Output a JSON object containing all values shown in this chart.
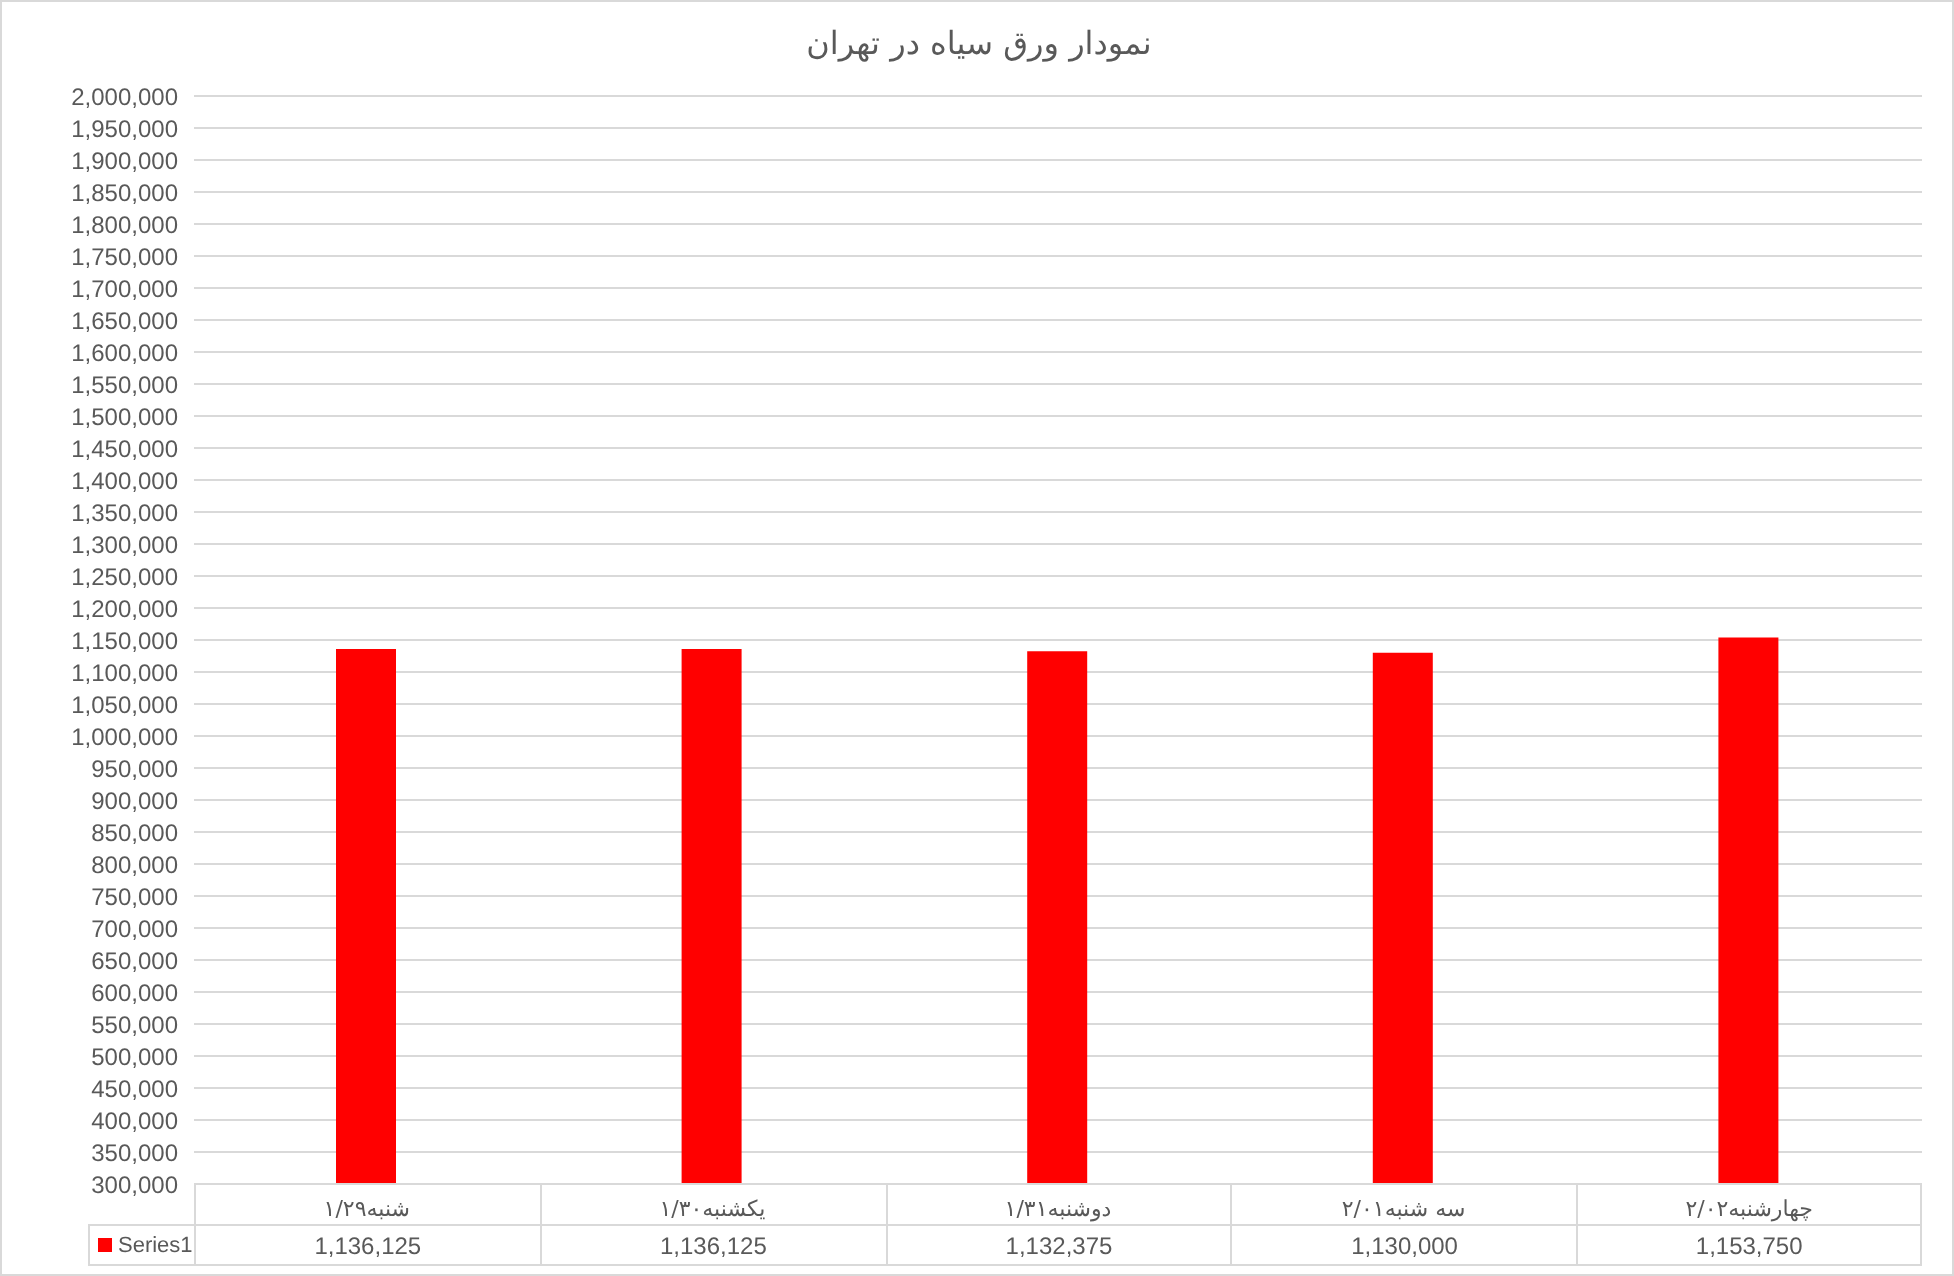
{
  "chart_data": {
    "type": "bar",
    "title": "نمودار ورق سیاه در تهران",
    "categories": [
      "شنبه۱/۲۹",
      "یکشنبه۱/۳۰",
      "دوشنبه۱/۳۱",
      "سه شنبه۲/۰۱",
      "چهارشنبه۲/۰۲"
    ],
    "series": [
      {
        "name": "Series1",
        "color": "#ff0000",
        "values": [
          1136125,
          1136125,
          1132375,
          1130000,
          1153750
        ],
        "value_labels": [
          "1,136,125",
          "1,136,125",
          "1,132,375",
          "1,130,000",
          "1,153,750"
        ]
      }
    ],
    "ylim": [
      300000,
      2000000
    ],
    "yticks": [
      {
        "value": 300000,
        "label": "300,000"
      },
      {
        "value": 350000,
        "label": "350,000"
      },
      {
        "value": 400000,
        "label": "400,000"
      },
      {
        "value": 450000,
        "label": "450,000"
      },
      {
        "value": 500000,
        "label": "500,000"
      },
      {
        "value": 550000,
        "label": "550,000"
      },
      {
        "value": 600000,
        "label": "600,000"
      },
      {
        "value": 650000,
        "label": "650,000"
      },
      {
        "value": 700000,
        "label": "700,000"
      },
      {
        "value": 750000,
        "label": "750,000"
      },
      {
        "value": 800000,
        "label": "800,000"
      },
      {
        "value": 850000,
        "label": "850,000"
      },
      {
        "value": 900000,
        "label": "900,000"
      },
      {
        "value": 950000,
        "label": "950,000"
      },
      {
        "value": 1000000,
        "label": "1,000,000"
      },
      {
        "value": 1050000,
        "label": "1,050,000"
      },
      {
        "value": 1100000,
        "label": "1,100,000"
      },
      {
        "value": 1150000,
        "label": "1,150,000"
      },
      {
        "value": 1200000,
        "label": "1,200,000"
      },
      {
        "value": 1250000,
        "label": "1,250,000"
      },
      {
        "value": 1300000,
        "label": "1,300,000"
      },
      {
        "value": 1350000,
        "label": "1,350,000"
      },
      {
        "value": 1400000,
        "label": "1,400,000"
      },
      {
        "value": 1450000,
        "label": "1,450,000"
      },
      {
        "value": 1500000,
        "label": "1,500,000"
      },
      {
        "value": 1550000,
        "label": "1,550,000"
      },
      {
        "value": 1600000,
        "label": "1,600,000"
      },
      {
        "value": 1650000,
        "label": "1,650,000"
      },
      {
        "value": 1700000,
        "label": "1,700,000"
      },
      {
        "value": 1750000,
        "label": "1,750,000"
      },
      {
        "value": 1800000,
        "label": "1,800,000"
      },
      {
        "value": 1850000,
        "label": "1,850,000"
      },
      {
        "value": 1900000,
        "label": "1,900,000"
      },
      {
        "value": 1950000,
        "label": "1,950,000"
      },
      {
        "value": 2000000,
        "label": "2,000,000"
      }
    ],
    "grid": "y",
    "legend": "bottom"
  }
}
